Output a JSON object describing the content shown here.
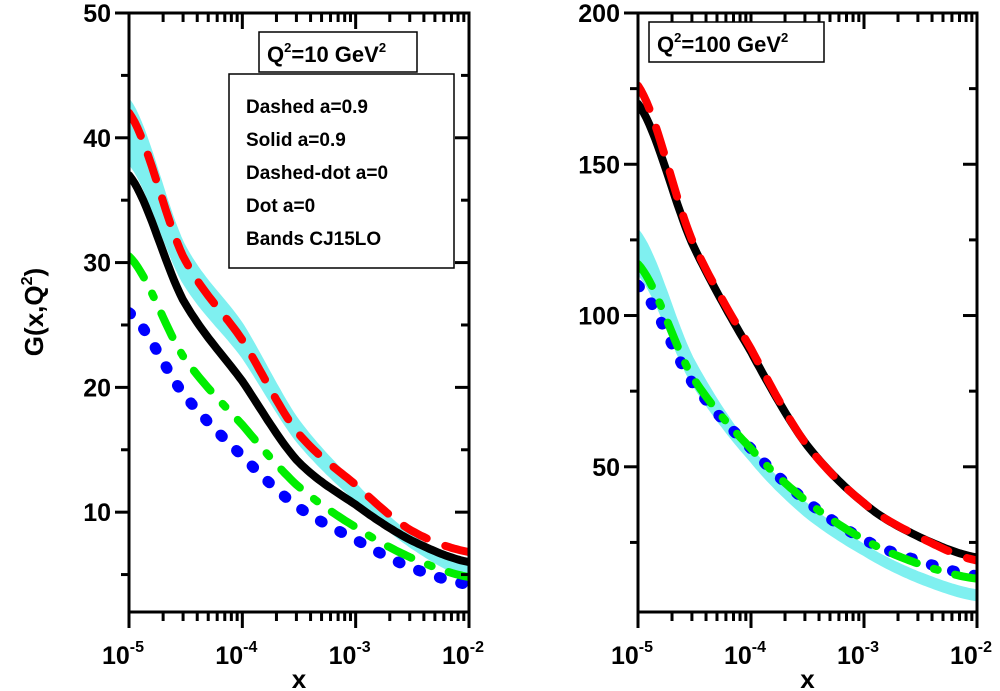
{
  "chart_data": [
    {
      "type": "line",
      "panel": "left",
      "title_box": {
        "base": "Q",
        "sup1": "2",
        "mid": "=10 GeV",
        "sup2": "2"
      },
      "legend_box": [
        "Dashed a=0.9",
        "Solid a=0.9",
        "Dashed-dot a=0",
        "Dot a=0",
        "Bands CJ15LO"
      ],
      "xlabel": "x",
      "ylabel": {
        "text": "G(x,Q",
        "sup": "2",
        "close": ")"
      },
      "xscale": "log",
      "xlim": [
        1e-05,
        0.01
      ],
      "ylim": [
        2,
        50
      ],
      "xticks": [
        {
          "base": "10",
          "exp": "-5",
          "value": 1e-05
        },
        {
          "base": "10",
          "exp": "-4",
          "value": 0.0001
        },
        {
          "base": "10",
          "exp": "-3",
          "value": 0.001
        },
        {
          "base": "10",
          "exp": "-2",
          "value": 0.01
        }
      ],
      "yticks": [
        {
          "label": "10",
          "value": 10
        },
        {
          "label": "20",
          "value": 20
        },
        {
          "label": "30",
          "value": 30
        },
        {
          "label": "40",
          "value": 40
        },
        {
          "label": "50",
          "value": 50
        }
      ],
      "yminor": [
        5,
        15,
        25,
        35,
        45
      ],
      "x": [
        1e-05,
        3e-05,
        0.0001,
        0.0003,
        0.001,
        0.003,
        0.01
      ],
      "band": {
        "name": "Bands CJ15LO",
        "color": "#7ff0f0",
        "upper": [
          43,
          31.5,
          25,
          17.5,
          12.2,
          8.2,
          5.6
        ],
        "lower": [
          38,
          28.5,
          22.5,
          15.8,
          11.0,
          7.3,
          4.8
        ]
      },
      "series": [
        {
          "name": "Dashed a=0.9",
          "style": "dashed",
          "color": "#ff0000",
          "values": [
            42,
            30.5,
            23.8,
            16.5,
            12.2,
            8.6,
            6.8
          ]
        },
        {
          "name": "Solid a=0.9",
          "style": "solid",
          "color": "#000000",
          "values": [
            37,
            27,
            20.5,
            14.2,
            10.6,
            7.8,
            6.0
          ]
        },
        {
          "name": "Dashed-dot a=0",
          "style": "dashdot",
          "color": "#00ee00",
          "values": [
            30.5,
            22.5,
            17,
            12.2,
            8.8,
            6.4,
            4.8
          ]
        },
        {
          "name": "Dot a=0",
          "style": "dotted",
          "color": "#0000ff",
          "values": [
            26,
            19.5,
            14.5,
            10.5,
            7.8,
            5.6,
            4.2
          ]
        }
      ]
    },
    {
      "type": "line",
      "panel": "right",
      "title_box": {
        "base": "Q",
        "sup1": "2",
        "mid": "=100 GeV",
        "sup2": "2"
      },
      "xlabel": "x",
      "xscale": "log",
      "xlim": [
        1e-05,
        0.01
      ],
      "ylim": [
        2,
        200
      ],
      "xticks": [
        {
          "base": "10",
          "exp": "-5",
          "value": 1e-05
        },
        {
          "base": "10",
          "exp": "-4",
          "value": 0.0001
        },
        {
          "base": "10",
          "exp": "-3",
          "value": 0.001
        },
        {
          "base": "10",
          "exp": "-2",
          "value": 0.01
        }
      ],
      "yticks": [
        {
          "label": "50",
          "value": 50
        },
        {
          "label": "100",
          "value": 100
        },
        {
          "label": "150",
          "value": 150
        },
        {
          "label": "200",
          "value": 200
        }
      ],
      "yminor": [
        25,
        75,
        125,
        175
      ],
      "x": [
        1e-05,
        3e-05,
        0.0001,
        0.0003,
        0.001,
        0.003,
        0.01
      ],
      "band": {
        "name": "Bands CJ15LO",
        "color": "#7ff0f0",
        "upper": [
          128,
          86,
          56,
          38,
          24,
          15,
          9
        ],
        "lower": [
          114,
          78,
          52,
          34,
          21,
          12,
          6
        ]
      },
      "series": [
        {
          "name": "Dashed a=0.9",
          "style": "dashed",
          "color": "#ff0000",
          "values": [
            176,
            125,
            89,
            58,
            38,
            27,
            19
          ]
        },
        {
          "name": "Solid a=0.9",
          "style": "solid",
          "color": "#000000",
          "values": [
            170,
            124,
            88,
            58,
            38,
            27,
            20
          ]
        },
        {
          "name": "Dashed-dot a=0",
          "style": "dashdot",
          "color": "#00ee00",
          "values": [
            117,
            80,
            56,
            39,
            26,
            18,
            13
          ]
        },
        {
          "name": "Dot a=0",
          "style": "dotted",
          "color": "#0000ff",
          "values": [
            110,
            78,
            56,
            39,
            26,
            19,
            14
          ]
        }
      ]
    }
  ]
}
